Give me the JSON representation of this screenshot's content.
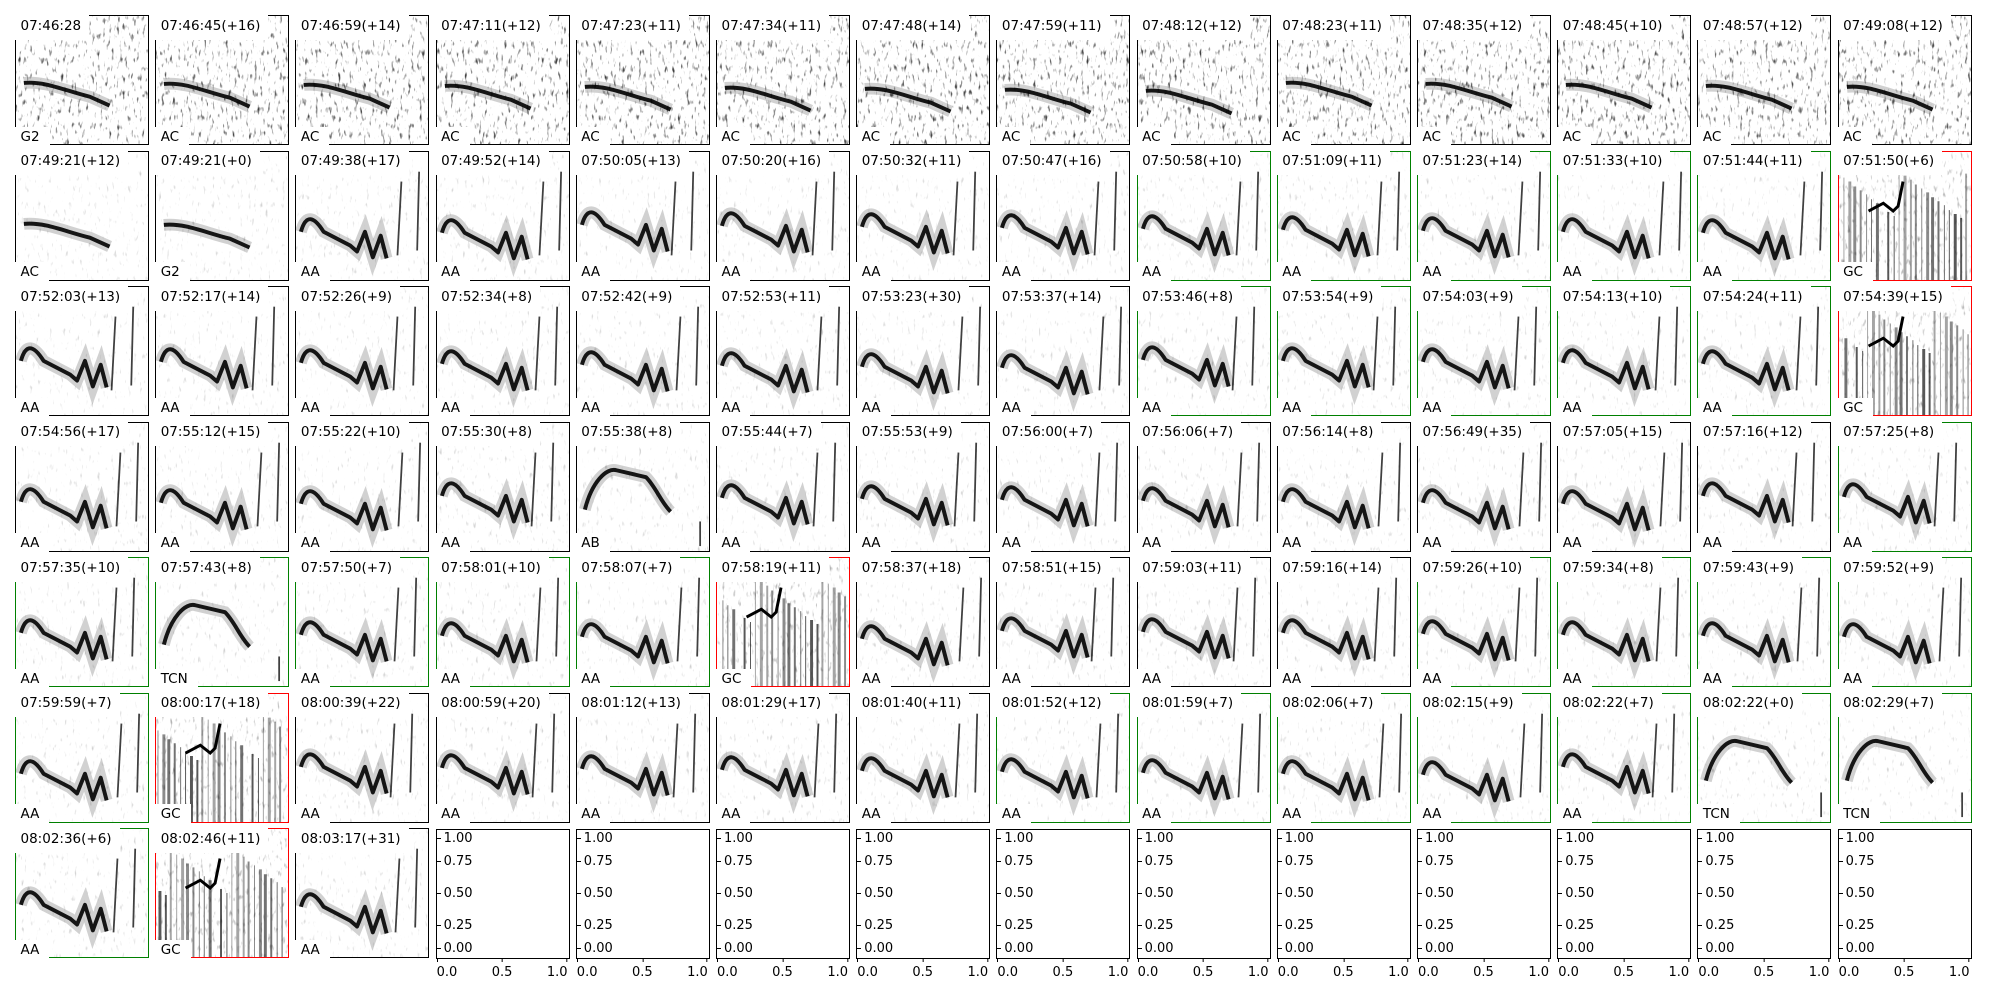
{
  "chart_data": {
    "type": "spectrogram-grid",
    "grid": {
      "rows": 7,
      "columns": 14
    },
    "border_colors": {
      "default": "#000000",
      "green": "#008000",
      "red": "#ff0000"
    },
    "panels": [
      {
        "title": "07:46:28",
        "label": "G2",
        "border": "default"
      },
      {
        "title": "07:46:45(+16)",
        "label": "AC",
        "border": "default"
      },
      {
        "title": "07:46:59(+14)",
        "label": "AC",
        "border": "default"
      },
      {
        "title": "07:47:11(+12)",
        "label": "AC",
        "border": "default"
      },
      {
        "title": "07:47:23(+11)",
        "label": "AC",
        "border": "default"
      },
      {
        "title": "07:47:34(+11)",
        "label": "AC",
        "border": "default"
      },
      {
        "title": "07:47:48(+14)",
        "label": "AC",
        "border": "default"
      },
      {
        "title": "07:47:59(+11)",
        "label": "AC",
        "border": "default"
      },
      {
        "title": "07:48:12(+12)",
        "label": "AC",
        "border": "default"
      },
      {
        "title": "07:48:23(+11)",
        "label": "AC",
        "border": "default"
      },
      {
        "title": "07:48:35(+12)",
        "label": "AC",
        "border": "default"
      },
      {
        "title": "07:48:45(+10)",
        "label": "AC",
        "border": "default"
      },
      {
        "title": "07:48:57(+12)",
        "label": "AC",
        "border": "default"
      },
      {
        "title": "07:49:08(+12)",
        "label": "AC",
        "border": "default"
      },
      {
        "title": "07:49:21(+12)",
        "label": "AC",
        "border": "default"
      },
      {
        "title": "07:49:21(+0)",
        "label": "G2",
        "border": "default"
      },
      {
        "title": "07:49:38(+17)",
        "label": "AA",
        "border": "default"
      },
      {
        "title": "07:49:52(+14)",
        "label": "AA",
        "border": "default"
      },
      {
        "title": "07:50:05(+13)",
        "label": "AA",
        "border": "default"
      },
      {
        "title": "07:50:20(+16)",
        "label": "AA",
        "border": "default"
      },
      {
        "title": "07:50:32(+11)",
        "label": "AA",
        "border": "default"
      },
      {
        "title": "07:50:47(+16)",
        "label": "AA",
        "border": "default"
      },
      {
        "title": "07:50:58(+10)",
        "label": "AA",
        "border": "green"
      },
      {
        "title": "07:51:09(+11)",
        "label": "AA",
        "border": "green"
      },
      {
        "title": "07:51:23(+14)",
        "label": "AA",
        "border": "green"
      },
      {
        "title": "07:51:33(+10)",
        "label": "AA",
        "border": "green"
      },
      {
        "title": "07:51:44(+11)",
        "label": "AA",
        "border": "green"
      },
      {
        "title": "07:51:50(+6)",
        "label": "GC",
        "border": "red"
      },
      {
        "title": "07:52:03(+13)",
        "label": "AA",
        "border": "default"
      },
      {
        "title": "07:52:17(+14)",
        "label": "AA",
        "border": "default"
      },
      {
        "title": "07:52:26(+9)",
        "label": "AA",
        "border": "default"
      },
      {
        "title": "07:52:34(+8)",
        "label": "AA",
        "border": "default"
      },
      {
        "title": "07:52:42(+9)",
        "label": "AA",
        "border": "default"
      },
      {
        "title": "07:52:53(+11)",
        "label": "AA",
        "border": "default"
      },
      {
        "title": "07:53:23(+30)",
        "label": "AA",
        "border": "default"
      },
      {
        "title": "07:53:37(+14)",
        "label": "AA",
        "border": "default"
      },
      {
        "title": "07:53:46(+8)",
        "label": "AA",
        "border": "green"
      },
      {
        "title": "07:53:54(+9)",
        "label": "AA",
        "border": "green"
      },
      {
        "title": "07:54:03(+9)",
        "label": "AA",
        "border": "green"
      },
      {
        "title": "07:54:13(+10)",
        "label": "AA",
        "border": "green"
      },
      {
        "title": "07:54:24(+11)",
        "label": "AA",
        "border": "green"
      },
      {
        "title": "07:54:39(+15)",
        "label": "GC",
        "border": "red"
      },
      {
        "title": "07:54:56(+17)",
        "label": "AA",
        "border": "default"
      },
      {
        "title": "07:55:12(+15)",
        "label": "AA",
        "border": "default"
      },
      {
        "title": "07:55:22(+10)",
        "label": "AA",
        "border": "default"
      },
      {
        "title": "07:55:30(+8)",
        "label": "AA",
        "border": "default"
      },
      {
        "title": "07:55:38(+8)",
        "label": "AB",
        "border": "default"
      },
      {
        "title": "07:55:44(+7)",
        "label": "AA",
        "border": "default"
      },
      {
        "title": "07:55:53(+9)",
        "label": "AA",
        "border": "default"
      },
      {
        "title": "07:56:00(+7)",
        "label": "AA",
        "border": "default"
      },
      {
        "title": "07:56:06(+7)",
        "label": "AA",
        "border": "default"
      },
      {
        "title": "07:56:14(+8)",
        "label": "AA",
        "border": "default"
      },
      {
        "title": "07:56:49(+35)",
        "label": "AA",
        "border": "default"
      },
      {
        "title": "07:57:05(+15)",
        "label": "AA",
        "border": "default"
      },
      {
        "title": "07:57:16(+12)",
        "label": "AA",
        "border": "default"
      },
      {
        "title": "07:57:25(+8)",
        "label": "AA",
        "border": "green"
      },
      {
        "title": "07:57:35(+10)",
        "label": "AA",
        "border": "green"
      },
      {
        "title": "07:57:43(+8)",
        "label": "TCN",
        "border": "green"
      },
      {
        "title": "07:57:50(+7)",
        "label": "AA",
        "border": "green"
      },
      {
        "title": "07:58:01(+10)",
        "label": "AA",
        "border": "green"
      },
      {
        "title": "07:58:07(+7)",
        "label": "AA",
        "border": "green"
      },
      {
        "title": "07:58:19(+11)",
        "label": "GC",
        "border": "red"
      },
      {
        "title": "07:58:37(+18)",
        "label": "AA",
        "border": "default"
      },
      {
        "title": "07:58:51(+15)",
        "label": "AA",
        "border": "default"
      },
      {
        "title": "07:59:03(+11)",
        "label": "AA",
        "border": "default"
      },
      {
        "title": "07:59:16(+14)",
        "label": "AA",
        "border": "default"
      },
      {
        "title": "07:59:26(+10)",
        "label": "AA",
        "border": "green"
      },
      {
        "title": "07:59:34(+8)",
        "label": "AA",
        "border": "green"
      },
      {
        "title": "07:59:43(+9)",
        "label": "AA",
        "border": "green"
      },
      {
        "title": "07:59:52(+9)",
        "label": "AA",
        "border": "green"
      },
      {
        "title": "07:59:59(+7)",
        "label": "AA",
        "border": "green"
      },
      {
        "title": "08:00:17(+18)",
        "label": "GC",
        "border": "red"
      },
      {
        "title": "08:00:39(+22)",
        "label": "AA",
        "border": "default"
      },
      {
        "title": "08:00:59(+20)",
        "label": "AA",
        "border": "default"
      },
      {
        "title": "08:01:12(+13)",
        "label": "AA",
        "border": "default"
      },
      {
        "title": "08:01:29(+17)",
        "label": "AA",
        "border": "default"
      },
      {
        "title": "08:01:40(+11)",
        "label": "AA",
        "border": "default"
      },
      {
        "title": "08:01:52(+12)",
        "label": "AA",
        "border": "green"
      },
      {
        "title": "08:01:59(+7)",
        "label": "AA",
        "border": "green"
      },
      {
        "title": "08:02:06(+7)",
        "label": "AA",
        "border": "green"
      },
      {
        "title": "08:02:15(+9)",
        "label": "AA",
        "border": "green"
      },
      {
        "title": "08:02:22(+7)",
        "label": "AA",
        "border": "green"
      },
      {
        "title": "08:02:22(+0)",
        "label": "TCN",
        "border": "green"
      },
      {
        "title": "08:02:29(+7)",
        "label": "TCN",
        "border": "green"
      },
      {
        "title": "08:02:36(+6)",
        "label": "AA",
        "border": "green"
      },
      {
        "title": "08:02:46(+11)",
        "label": "GC",
        "border": "red"
      },
      {
        "title": "08:03:17(+31)",
        "label": "AA",
        "border": "default"
      }
    ],
    "empty_axes": {
      "count": 11,
      "xlim": [
        0,
        1
      ],
      "ylim": [
        0,
        1
      ],
      "xticks": [
        "0.0",
        "0.5",
        "1.0"
      ],
      "yticks": [
        "0.00",
        "0.25",
        "0.50",
        "0.75",
        "1.00"
      ]
    }
  }
}
